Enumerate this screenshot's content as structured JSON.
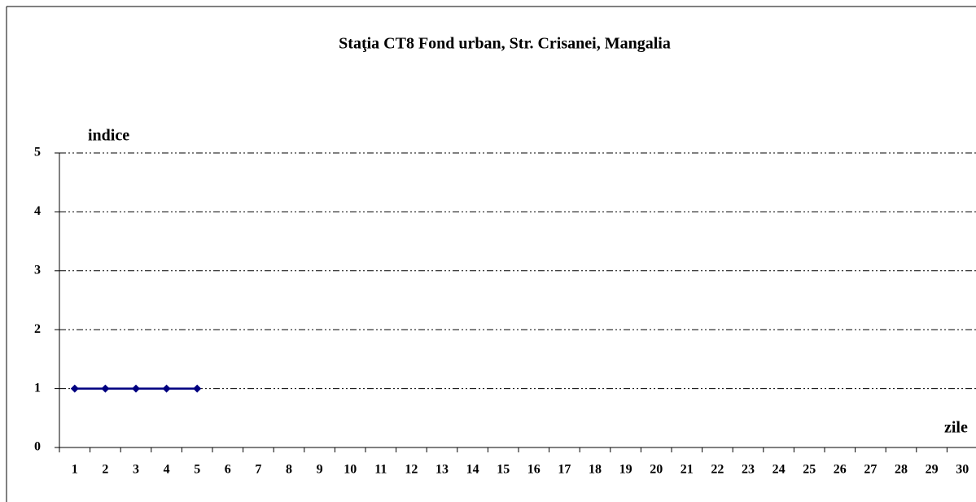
{
  "chart_data": {
    "type": "line",
    "title": "Staţia CT8 Fond urban,  Str. Crisanei, Mangalia",
    "y_label": "indice",
    "x_label": "zile",
    "categories": [
      1,
      2,
      3,
      4,
      5,
      6,
      7,
      8,
      9,
      10,
      11,
      12,
      13,
      14,
      15,
      16,
      17,
      18,
      19,
      20,
      21,
      22,
      23,
      24,
      25,
      26,
      27,
      28,
      29,
      30
    ],
    "series": [
      {
        "color": "#000080",
        "values": [
          1,
          1,
          1,
          1,
          1,
          null,
          null,
          null,
          null,
          null,
          null,
          null,
          null,
          null,
          null,
          null,
          null,
          null,
          null,
          null,
          null,
          null,
          null,
          null,
          null,
          null,
          null,
          null,
          null,
          null
        ]
      }
    ],
    "ylim": [
      0,
      5
    ],
    "yticks": [
      0,
      1,
      2,
      3,
      4,
      5
    ],
    "grid": true
  }
}
